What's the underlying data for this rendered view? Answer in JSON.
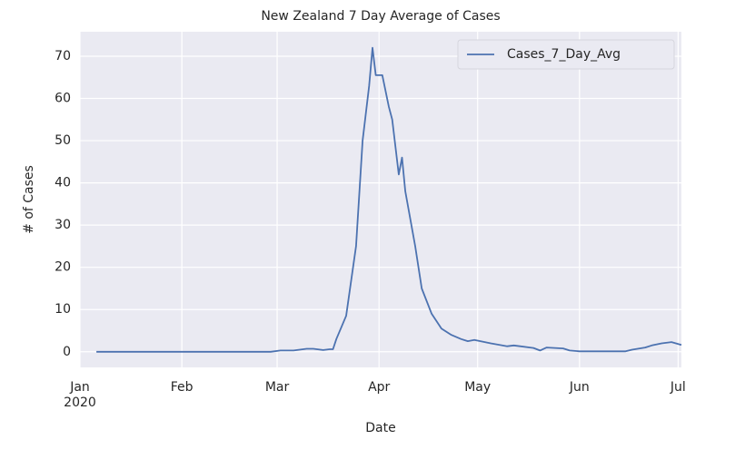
{
  "chart_data": {
    "type": "line",
    "title": "New Zealand 7 Day Average of Cases",
    "xlabel": "Date",
    "ylabel": "# of Cases",
    "x": [
      "2020-01-06",
      "2020-01-20",
      "2020-02-05",
      "2020-02-20",
      "2020-02-28",
      "2020-03-02",
      "2020-03-06",
      "2020-03-10",
      "2020-03-12",
      "2020-03-15",
      "2020-03-17",
      "2020-03-18",
      "2020-03-19",
      "2020-03-22",
      "2020-03-25",
      "2020-03-27",
      "2020-03-29",
      "2020-03-30",
      "2020-03-31",
      "2020-04-01",
      "2020-04-02",
      "2020-04-04",
      "2020-04-05",
      "2020-04-07",
      "2020-04-08",
      "2020-04-09",
      "2020-04-12",
      "2020-04-14",
      "2020-04-17",
      "2020-04-20",
      "2020-04-23",
      "2020-04-26",
      "2020-04-28",
      "2020-04-30",
      "2020-05-05",
      "2020-05-10",
      "2020-05-12",
      "2020-05-18",
      "2020-05-20",
      "2020-05-22",
      "2020-05-27",
      "2020-05-29",
      "2020-06-01",
      "2020-06-15",
      "2020-06-17",
      "2020-06-21",
      "2020-06-23",
      "2020-06-26",
      "2020-06-29",
      "2020-07-02"
    ],
    "series": [
      {
        "name": "Cases_7_Day_Avg",
        "color": "#4c72b0",
        "values": [
          0,
          0,
          0,
          0,
          0,
          0.3,
          0.3,
          0.7,
          0.7,
          0.4,
          0.6,
          0.6,
          3,
          8.5,
          25,
          50,
          63,
          72,
          65.5,
          65.5,
          65.5,
          58,
          55,
          42,
          46,
          38,
          25,
          15,
          9,
          5.5,
          4,
          3,
          2.5,
          2.8,
          2,
          1.3,
          1.5,
          0.9,
          0.3,
          1,
          0.8,
          0.3,
          0.1,
          0.1,
          0.5,
          1,
          1.5,
          2,
          2.3,
          1.6
        ]
      }
    ],
    "xlim": [
      "2020-01-01",
      "2020-07-02"
    ],
    "xticks": [
      {
        "value": "2020-01-01",
        "label": "Jan\n2020"
      },
      {
        "value": "2020-02-01",
        "label": "Feb"
      },
      {
        "value": "2020-03-01",
        "label": "Mar"
      },
      {
        "value": "2020-04-01",
        "label": "Apr"
      },
      {
        "value": "2020-05-01",
        "label": "May"
      },
      {
        "value": "2020-06-01",
        "label": "Jun"
      },
      {
        "value": "2020-07-01",
        "label": "Jul"
      }
    ],
    "ylim": [
      -3.7,
      75.8
    ],
    "yticks": [
      0,
      10,
      20,
      30,
      40,
      50,
      60,
      70
    ],
    "grid": true,
    "legend": "upper right"
  }
}
